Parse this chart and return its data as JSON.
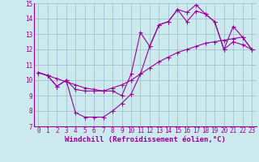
{
  "background_color": "#cce9ee",
  "line_color": "#990099",
  "grid_color": "#99bbcc",
  "xlabel": "Windchill (Refroidissement éolien,°C)",
  "xlabel_fontsize": 6.5,
  "tick_fontsize": 5.5,
  "xlim": [
    -0.5,
    23.5
  ],
  "ylim": [
    7,
    15
  ],
  "yticks": [
    7,
    8,
    9,
    10,
    11,
    12,
    13,
    14,
    15
  ],
  "xticks": [
    0,
    1,
    2,
    3,
    4,
    5,
    6,
    7,
    8,
    9,
    10,
    11,
    12,
    13,
    14,
    15,
    16,
    17,
    18,
    19,
    20,
    21,
    22,
    23
  ],
  "line1_x": [
    0,
    1,
    2,
    3,
    4,
    5,
    6,
    7,
    8,
    9,
    10,
    11,
    12,
    13,
    14,
    15,
    16,
    17,
    18,
    19,
    20,
    21,
    22,
    23
  ],
  "line1_y": [
    10.5,
    10.3,
    9.6,
    10.0,
    7.9,
    7.6,
    7.6,
    7.6,
    8.0,
    8.5,
    9.1,
    10.4,
    12.2,
    13.6,
    13.8,
    14.6,
    13.8,
    14.5,
    14.3,
    13.8,
    12.0,
    12.5,
    12.3,
    12.0
  ],
  "line2_x": [
    0,
    1,
    2,
    3,
    4,
    5,
    6,
    7,
    8,
    9,
    10,
    11,
    12,
    13,
    14,
    15,
    16,
    17,
    18,
    19,
    20,
    21,
    22,
    23
  ],
  "line2_y": [
    10.5,
    10.3,
    10.1,
    9.9,
    9.7,
    9.5,
    9.4,
    9.3,
    9.5,
    9.7,
    10.0,
    10.4,
    10.8,
    11.2,
    11.5,
    11.8,
    12.0,
    12.2,
    12.4,
    12.5,
    12.6,
    12.7,
    12.8,
    12.0
  ],
  "line3_x": [
    0,
    1,
    2,
    3,
    4,
    5,
    6,
    7,
    8,
    9,
    10,
    11,
    12,
    13,
    14,
    15,
    16,
    17,
    18,
    19,
    20,
    21,
    22,
    23
  ],
  "line3_y": [
    10.5,
    10.3,
    9.6,
    10.0,
    9.4,
    9.3,
    9.3,
    9.3,
    9.3,
    9.0,
    10.4,
    13.1,
    12.2,
    13.6,
    13.8,
    14.6,
    14.4,
    14.9,
    14.3,
    13.8,
    12.0,
    13.5,
    12.8,
    12.0
  ]
}
